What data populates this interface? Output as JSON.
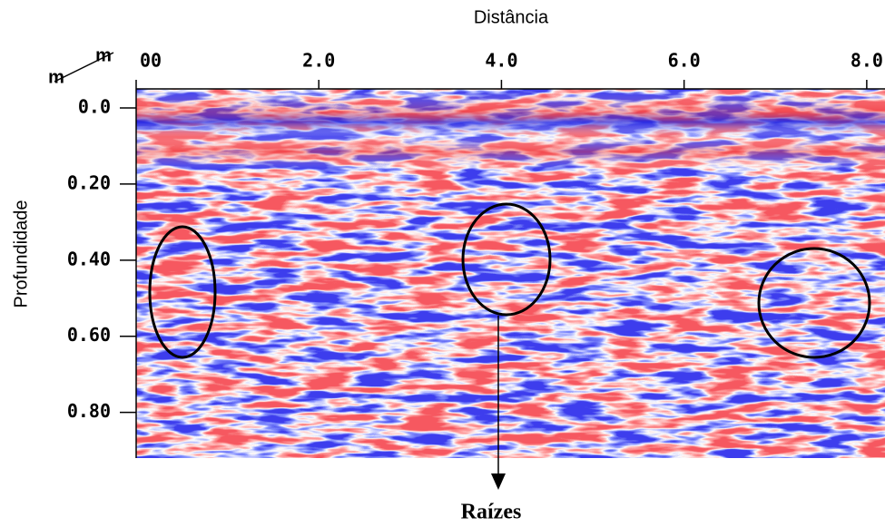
{
  "chart_data": {
    "type": "radargram",
    "title": "Distância",
    "y_label": "Profundidade",
    "x_unit": "m",
    "y_unit": "m",
    "annotation": "Raízes",
    "xlim": [
      0,
      8.2
    ],
    "xticks": [
      {
        "value": 0,
        "label": "00"
      },
      {
        "value": 2,
        "label": "2.0"
      },
      {
        "value": 4,
        "label": "4.0"
      },
      {
        "value": 6,
        "label": "6.0"
      },
      {
        "value": 8,
        "label": "8.0"
      }
    ],
    "ylim": [
      -0.05,
      0.92
    ],
    "yticks": [
      {
        "value": 0,
        "label": "0.0"
      },
      {
        "value": 0.2,
        "label": "0.20"
      },
      {
        "value": 0.4,
        "label": "0.40"
      },
      {
        "value": 0.6,
        "label": "0.60"
      },
      {
        "value": 0.8,
        "label": "0.80"
      }
    ]
  }
}
